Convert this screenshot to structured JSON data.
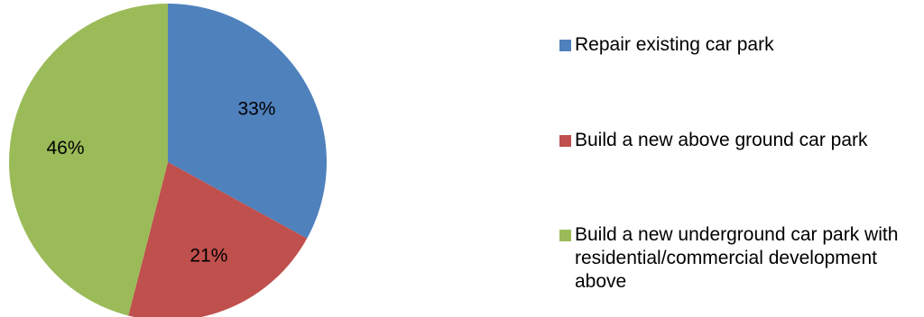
{
  "chart_data": {
    "type": "pie",
    "categories": [
      "Repair existing car park",
      "Build a new above ground car park",
      "Build a new underground car park with residential/commercial development above"
    ],
    "values": [
      33,
      21,
      46
    ],
    "labels": [
      "33%",
      "21%",
      "46%"
    ],
    "colors": [
      "#4f81bd",
      "#c0504d",
      "#9bbb59"
    ],
    "start_angle": "12 o'clock",
    "direction": "clockwise",
    "legend_position": "right"
  }
}
